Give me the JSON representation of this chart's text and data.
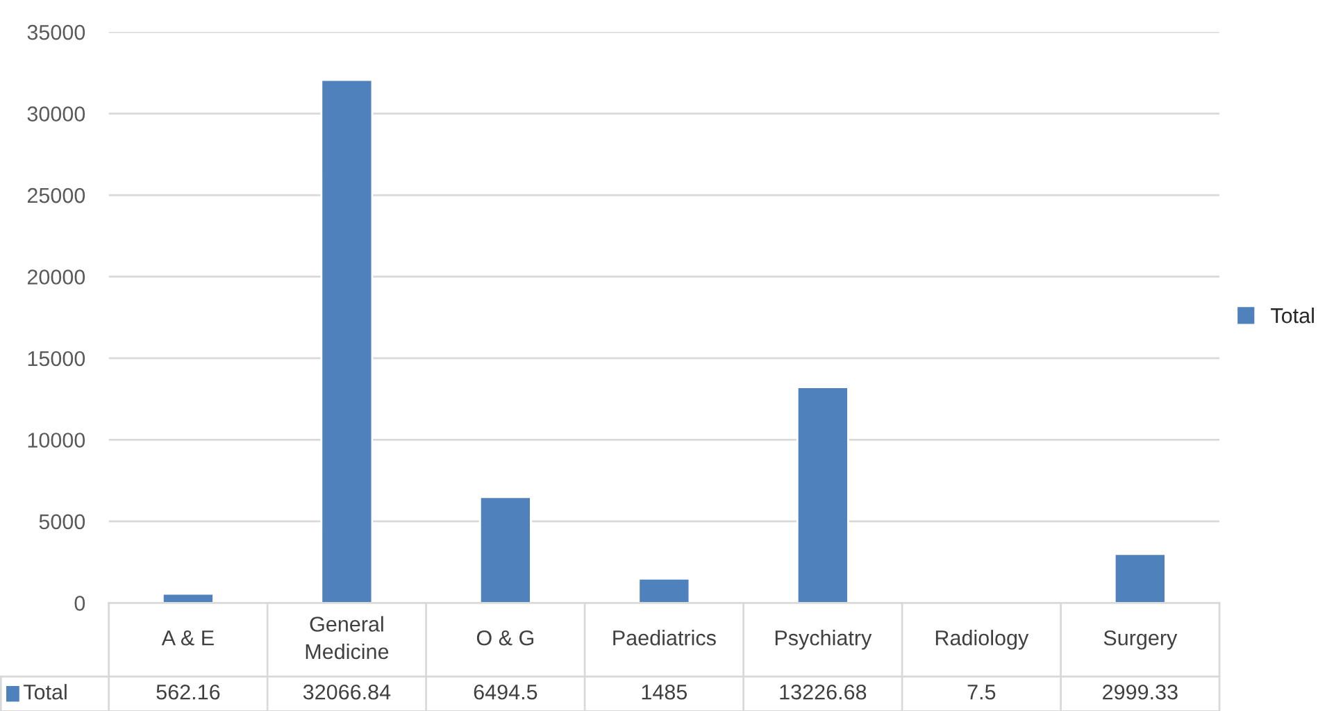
{
  "chart_data": {
    "type": "bar",
    "categories": [
      "A & E",
      "General Medicine",
      "O & G",
      "Paediatrics",
      "Psychiatry",
      "Radiology",
      "Surgery"
    ],
    "series": [
      {
        "name": "Total",
        "color": "#4f81bd",
        "values": [
          562.16,
          32066.84,
          6494.5,
          1485,
          13226.68,
          7.5,
          2999.33
        ]
      }
    ],
    "ylim": [
      0,
      35000
    ],
    "yticks": [
      0,
      5000,
      10000,
      15000,
      20000,
      25000,
      30000,
      35000
    ],
    "grid": "y",
    "legend": "right",
    "data_labels": true
  }
}
